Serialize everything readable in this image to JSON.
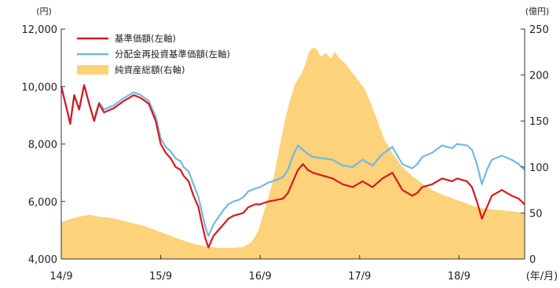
{
  "chart_data": {
    "type": "line",
    "units": {
      "left": "(円)",
      "right": "(億円)",
      "x": "(年/月)"
    },
    "x_ticks": [
      "14/9",
      "15/9",
      "16/9",
      "17/9",
      "18/9"
    ],
    "x_range": [
      2014.67,
      2019.33
    ],
    "left_axis": {
      "min": 4000,
      "max": 12000,
      "ticks": [
        4000,
        6000,
        8000,
        10000,
        12000
      ],
      "tick_labels": [
        "4,000",
        "6,000",
        "8,000",
        "10,000",
        "12,000"
      ]
    },
    "right_axis": {
      "min": 0,
      "max": 250,
      "ticks": [
        0,
        50,
        100,
        150,
        200,
        250
      ],
      "tick_labels": [
        "0",
        "50",
        "100",
        "150",
        "200",
        "250"
      ]
    },
    "legend_position": "top-left",
    "colors": {
      "nav": "#d71920",
      "reinvested": "#74b8e4",
      "aum": "#fcd27a"
    },
    "series": [
      {
        "name": "基準価額(左軸)",
        "axis": "left",
        "kind": "line",
        "points": [
          [
            2014.67,
            10000
          ],
          [
            2014.72,
            9300
          ],
          [
            2014.76,
            8700
          ],
          [
            2014.8,
            9700
          ],
          [
            2014.85,
            9200
          ],
          [
            2014.9,
            10050
          ],
          [
            2014.95,
            9400
          ],
          [
            2015.0,
            8800
          ],
          [
            2015.05,
            9400
          ],
          [
            2015.1,
            9100
          ],
          [
            2015.2,
            9250
          ],
          [
            2015.3,
            9500
          ],
          [
            2015.35,
            9600
          ],
          [
            2015.4,
            9700
          ],
          [
            2015.47,
            9600
          ],
          [
            2015.55,
            9400
          ],
          [
            2015.62,
            8800
          ],
          [
            2015.67,
            8000
          ],
          [
            2015.72,
            7700
          ],
          [
            2015.77,
            7500
          ],
          [
            2015.82,
            7200
          ],
          [
            2015.87,
            7100
          ],
          [
            2015.9,
            6900
          ],
          [
            2015.95,
            6700
          ],
          [
            2016.0,
            6200
          ],
          [
            2016.05,
            5800
          ],
          [
            2016.08,
            5300
          ],
          [
            2016.12,
            4700
          ],
          [
            2016.15,
            4400
          ],
          [
            2016.2,
            4800
          ],
          [
            2016.25,
            5000
          ],
          [
            2016.3,
            5200
          ],
          [
            2016.35,
            5400
          ],
          [
            2016.4,
            5500
          ],
          [
            2016.45,
            5550
          ],
          [
            2016.5,
            5600
          ],
          [
            2016.55,
            5800
          ],
          [
            2016.62,
            5900
          ],
          [
            2016.67,
            5900
          ],
          [
            2016.75,
            6000
          ],
          [
            2016.83,
            6050
          ],
          [
            2016.9,
            6100
          ],
          [
            2016.95,
            6300
          ],
          [
            2017.0,
            6700
          ],
          [
            2017.05,
            7100
          ],
          [
            2017.1,
            7300
          ],
          [
            2017.15,
            7100
          ],
          [
            2017.2,
            7000
          ],
          [
            2017.3,
            6900
          ],
          [
            2017.4,
            6800
          ],
          [
            2017.5,
            6600
          ],
          [
            2017.6,
            6500
          ],
          [
            2017.7,
            6700
          ],
          [
            2017.8,
            6500
          ],
          [
            2017.9,
            6800
          ],
          [
            2018.0,
            7000
          ],
          [
            2018.05,
            6700
          ],
          [
            2018.1,
            6400
          ],
          [
            2018.2,
            6200
          ],
          [
            2018.25,
            6300
          ],
          [
            2018.3,
            6500
          ],
          [
            2018.4,
            6600
          ],
          [
            2018.5,
            6800
          ],
          [
            2018.6,
            6700
          ],
          [
            2018.65,
            6800
          ],
          [
            2018.75,
            6700
          ],
          [
            2018.8,
            6500
          ],
          [
            2018.85,
            6000
          ],
          [
            2018.9,
            5400
          ],
          [
            2018.95,
            5800
          ],
          [
            2019.0,
            6200
          ],
          [
            2019.1,
            6400
          ],
          [
            2019.2,
            6200
          ],
          [
            2019.27,
            6100
          ],
          [
            2019.33,
            5900
          ]
        ]
      },
      {
        "name": "分配金再投資基準価額(左軸)",
        "axis": "left",
        "kind": "line",
        "points": [
          [
            2014.67,
            10000
          ],
          [
            2014.72,
            9300
          ],
          [
            2014.76,
            8700
          ],
          [
            2014.8,
            9700
          ],
          [
            2014.85,
            9200
          ],
          [
            2014.9,
            10050
          ],
          [
            2014.95,
            9400
          ],
          [
            2015.0,
            8850
          ],
          [
            2015.05,
            9450
          ],
          [
            2015.1,
            9200
          ],
          [
            2015.2,
            9350
          ],
          [
            2015.3,
            9600
          ],
          [
            2015.35,
            9700
          ],
          [
            2015.4,
            9800
          ],
          [
            2015.47,
            9700
          ],
          [
            2015.55,
            9500
          ],
          [
            2015.62,
            8950
          ],
          [
            2015.67,
            8200
          ],
          [
            2015.72,
            7900
          ],
          [
            2015.77,
            7750
          ],
          [
            2015.82,
            7500
          ],
          [
            2015.87,
            7400
          ],
          [
            2015.9,
            7200
          ],
          [
            2015.95,
            7050
          ],
          [
            2016.0,
            6600
          ],
          [
            2016.05,
            6150
          ],
          [
            2016.08,
            5700
          ],
          [
            2016.12,
            5100
          ],
          [
            2016.15,
            4800
          ],
          [
            2016.2,
            5200
          ],
          [
            2016.25,
            5450
          ],
          [
            2016.3,
            5700
          ],
          [
            2016.35,
            5900
          ],
          [
            2016.4,
            6000
          ],
          [
            2016.45,
            6050
          ],
          [
            2016.5,
            6150
          ],
          [
            2016.55,
            6350
          ],
          [
            2016.62,
            6450
          ],
          [
            2016.67,
            6500
          ],
          [
            2016.75,
            6650
          ],
          [
            2016.83,
            6750
          ],
          [
            2016.9,
            6850
          ],
          [
            2016.95,
            7100
          ],
          [
            2017.0,
            7600
          ],
          [
            2017.05,
            7950
          ],
          [
            2017.1,
            7800
          ],
          [
            2017.15,
            7650
          ],
          [
            2017.2,
            7550
          ],
          [
            2017.3,
            7500
          ],
          [
            2017.4,
            7450
          ],
          [
            2017.5,
            7250
          ],
          [
            2017.6,
            7200
          ],
          [
            2017.7,
            7450
          ],
          [
            2017.8,
            7250
          ],
          [
            2017.9,
            7650
          ],
          [
            2018.0,
            7900
          ],
          [
            2018.05,
            7600
          ],
          [
            2018.1,
            7300
          ],
          [
            2018.2,
            7150
          ],
          [
            2018.25,
            7300
          ],
          [
            2018.3,
            7550
          ],
          [
            2018.4,
            7700
          ],
          [
            2018.5,
            7950
          ],
          [
            2018.6,
            7850
          ],
          [
            2018.65,
            8000
          ],
          [
            2018.75,
            7950
          ],
          [
            2018.8,
            7800
          ],
          [
            2018.85,
            7300
          ],
          [
            2018.9,
            6600
          ],
          [
            2018.95,
            7100
          ],
          [
            2019.0,
            7450
          ],
          [
            2019.1,
            7600
          ],
          [
            2019.2,
            7450
          ],
          [
            2019.27,
            7300
          ],
          [
            2019.33,
            7100
          ]
        ]
      },
      {
        "name": "純資産総額(右軸)",
        "axis": "right",
        "kind": "area",
        "points": [
          [
            2014.67,
            40
          ],
          [
            2014.75,
            43
          ],
          [
            2014.85,
            46
          ],
          [
            2014.95,
            48
          ],
          [
            2015.05,
            46
          ],
          [
            2015.2,
            44
          ],
          [
            2015.35,
            40
          ],
          [
            2015.5,
            36
          ],
          [
            2015.65,
            30
          ],
          [
            2015.8,
            24
          ],
          [
            2015.95,
            18
          ],
          [
            2016.1,
            14
          ],
          [
            2016.25,
            12
          ],
          [
            2016.4,
            12
          ],
          [
            2016.5,
            13
          ],
          [
            2016.58,
            18
          ],
          [
            2016.65,
            30
          ],
          [
            2016.72,
            55
          ],
          [
            2016.8,
            85
          ],
          [
            2016.88,
            130
          ],
          [
            2016.95,
            165
          ],
          [
            2017.02,
            190
          ],
          [
            2017.08,
            200
          ],
          [
            2017.12,
            210
          ],
          [
            2017.16,
            225
          ],
          [
            2017.2,
            230
          ],
          [
            2017.24,
            228
          ],
          [
            2017.28,
            220
          ],
          [
            2017.33,
            224
          ],
          [
            2017.38,
            218
          ],
          [
            2017.42,
            225
          ],
          [
            2017.47,
            218
          ],
          [
            2017.53,
            212
          ],
          [
            2017.58,
            205
          ],
          [
            2017.65,
            195
          ],
          [
            2017.72,
            185
          ],
          [
            2017.78,
            170
          ],
          [
            2017.85,
            150
          ],
          [
            2017.92,
            130
          ],
          [
            2018.0,
            115
          ],
          [
            2018.1,
            100
          ],
          [
            2018.2,
            90
          ],
          [
            2018.3,
            82
          ],
          [
            2018.4,
            75
          ],
          [
            2018.5,
            70
          ],
          [
            2018.6,
            66
          ],
          [
            2018.7,
            62
          ],
          [
            2018.8,
            58
          ],
          [
            2018.9,
            55
          ],
          [
            2019.0,
            54
          ],
          [
            2019.1,
            53
          ],
          [
            2019.2,
            52
          ],
          [
            2019.33,
            50
          ]
        ]
      }
    ]
  }
}
